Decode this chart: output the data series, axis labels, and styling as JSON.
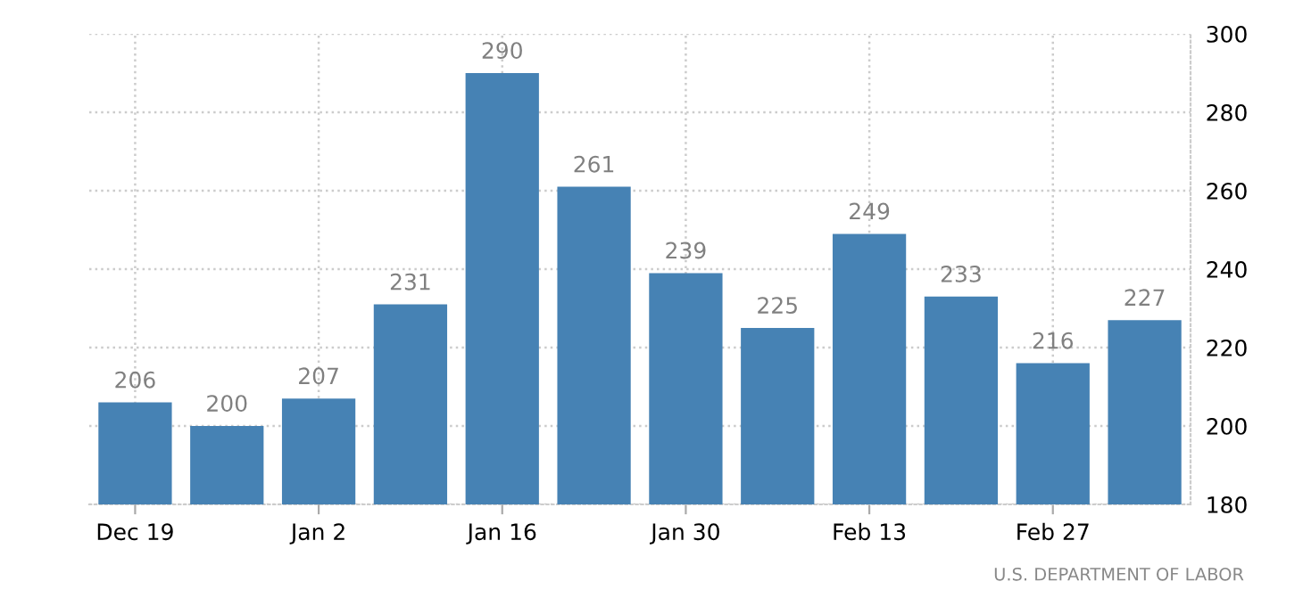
{
  "chart_data": {
    "type": "bar",
    "categories": [
      "Dec 19",
      null,
      "Jan 2",
      null,
      "Jan 16",
      null,
      "Jan 30",
      null,
      "Feb 13",
      null,
      "Feb 27",
      null
    ],
    "values": [
      206,
      200,
      207,
      231,
      290,
      261,
      239,
      225,
      249,
      233,
      216,
      227
    ],
    "color": "#4682b4",
    "ylim": [
      180,
      300
    ],
    "yticks": [
      180,
      200,
      220,
      240,
      260,
      280,
      300
    ],
    "grid": true,
    "data_labels": true,
    "annotations": [
      "U.S. DEPARTMENT OF LABOR"
    ]
  }
}
